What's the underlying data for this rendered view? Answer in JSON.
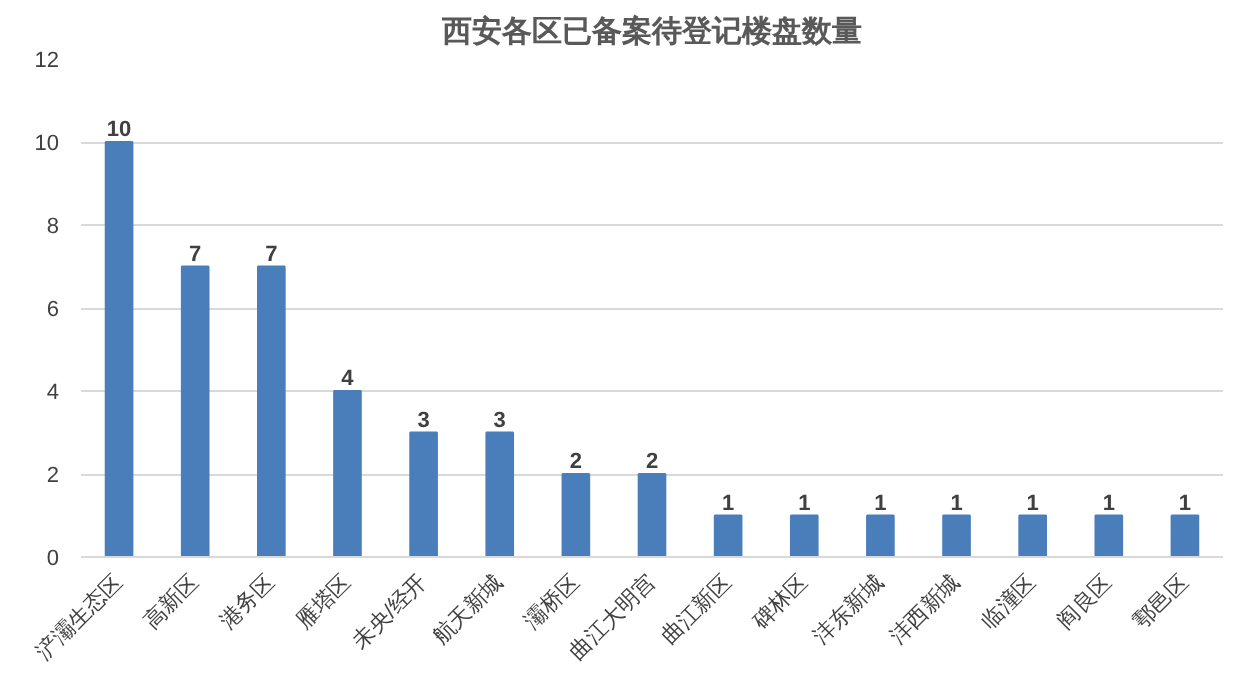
{
  "chart_data": {
    "type": "bar",
    "title": "西安各区已备案待登记楼盘数量",
    "categories": [
      "浐灞生态区",
      "高新区",
      "港务区",
      "雁塔区",
      "未央/经开",
      "航天新城",
      "灞桥区",
      "曲江大明宫",
      "曲江新区",
      "碑林区",
      "沣东新城",
      "沣西新城",
      "临潼区",
      "阎良区",
      "鄠邑区"
    ],
    "values": [
      10,
      7,
      7,
      4,
      3,
      3,
      2,
      2,
      1,
      1,
      1,
      1,
      1,
      1,
      1
    ],
    "color": "#4a7ebb",
    "ylim": [
      0,
      12
    ],
    "yticks": [
      0,
      2,
      4,
      6,
      8,
      10,
      12
    ],
    "grid": "y",
    "data_labels": true
  }
}
